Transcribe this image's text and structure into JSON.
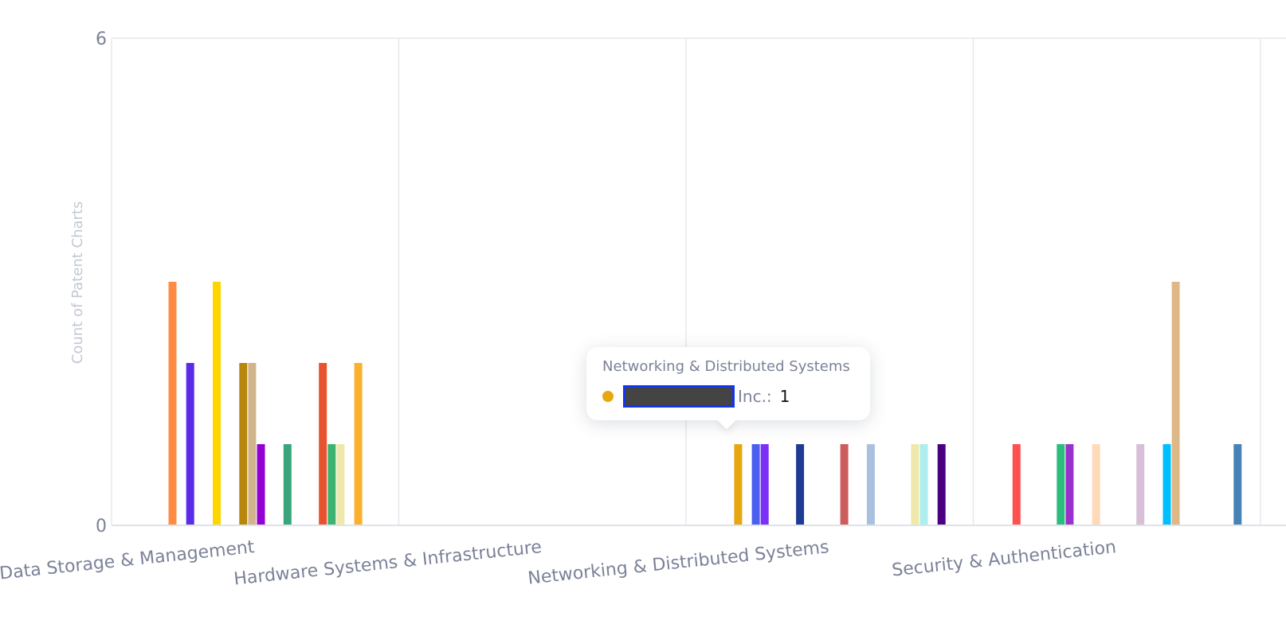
{
  "chart_data": {
    "type": "bar",
    "ylabel": "Count of Patent Charts",
    "xlabel": "",
    "ylim": [
      0,
      6
    ],
    "y_ticks": [
      "0",
      "6"
    ],
    "grid": "vertical",
    "categories": [
      "Data Storage & Management",
      "Hardware Systems & Infrastructure",
      "Networking & Distributed Systems",
      "Security & Authentication"
    ],
    "groups": [
      {
        "category": "Data Storage & Management",
        "bars": [
          {
            "slot": 5,
            "value": 3,
            "color": "#ff8c42"
          },
          {
            "slot": 7,
            "value": 2,
            "color": "#5b2bea"
          },
          {
            "slot": 10,
            "value": 3,
            "color": "#ffd500"
          },
          {
            "slot": 13,
            "value": 2,
            "color": "#b8860b"
          },
          {
            "slot": 14,
            "value": 2,
            "color": "#d2b48c"
          },
          {
            "slot": 15,
            "value": 1,
            "color": "#9400d3"
          },
          {
            "slot": 18,
            "value": 1,
            "color": "#3aa57c"
          },
          {
            "slot": 22,
            "value": 2,
            "color": "#e8532f"
          },
          {
            "slot": 23,
            "value": 1,
            "color": "#3cb371"
          },
          {
            "slot": 24,
            "value": 1,
            "color": "#eee8aa"
          },
          {
            "slot": 26,
            "value": 2,
            "color": "#fbb02d"
          }
        ]
      },
      {
        "category": "Hardware Systems & Infrastructure",
        "bars": []
      },
      {
        "category": "Networking & Distributed Systems",
        "bars": [
          {
            "slot": 4,
            "value": 1,
            "color": "#e6a80e"
          },
          {
            "slot": 6,
            "value": 1,
            "color": "#4a5ef0"
          },
          {
            "slot": 7,
            "value": 1,
            "color": "#7b2ff7"
          },
          {
            "slot": 11,
            "value": 1,
            "color": "#1f3a93"
          },
          {
            "slot": 16,
            "value": 1,
            "color": "#cd5c5c"
          },
          {
            "slot": 19,
            "value": 1,
            "color": "#a9c0de"
          },
          {
            "slot": 24,
            "value": 1,
            "color": "#eee8aa"
          },
          {
            "slot": 25,
            "value": 1,
            "color": "#aeeeee"
          },
          {
            "slot": 27,
            "value": 1,
            "color": "#4b0082"
          }
        ]
      },
      {
        "category": "Security & Authentication",
        "bars": [
          {
            "slot": 3,
            "value": 1,
            "color": "#ff4f4f"
          },
          {
            "slot": 8,
            "value": 1,
            "color": "#2bbd7e"
          },
          {
            "slot": 9,
            "value": 1,
            "color": "#9932cc"
          },
          {
            "slot": 12,
            "value": 1,
            "color": "#ffdab9"
          },
          {
            "slot": 17,
            "value": 1,
            "color": "#d8bfd8"
          },
          {
            "slot": 20,
            "value": 1,
            "color": "#00bfff"
          },
          {
            "slot": 21,
            "value": 3,
            "color": "#deb887"
          },
          {
            "slot": 28,
            "value": 1,
            "color": "#4682b4"
          }
        ]
      }
    ]
  },
  "tooltip": {
    "title": "Networking & Distributed Systems",
    "series_label": "Inc.:",
    "value": "1",
    "dot_color": "#e6a80e"
  }
}
